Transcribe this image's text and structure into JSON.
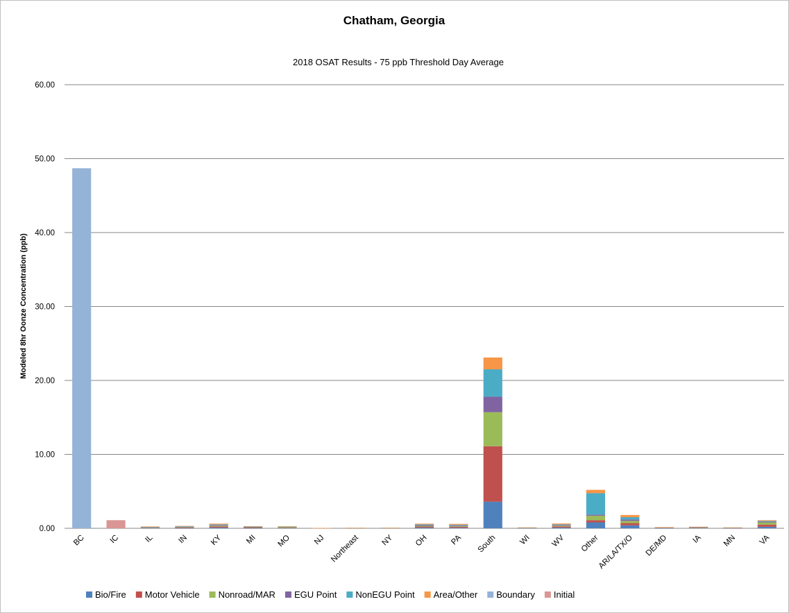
{
  "chart_data": {
    "type": "bar",
    "stacked": true,
    "title": "Chatham, Georgia",
    "subtitle": "2018 OSAT Results - 75 ppb Threshold Day Average",
    "xlabel": "",
    "ylabel": "Modeled 8hr Oonze Concentration (ppb)",
    "ylim": [
      0,
      60
    ],
    "yticks": [
      "0.00",
      "10.00",
      "20.00",
      "30.00",
      "40.00",
      "50.00",
      "60.00"
    ],
    "grid": true,
    "legend_position": "bottom",
    "categories": [
      "BC",
      "IC",
      "IL",
      "IN",
      "KY",
      "MI",
      "MO",
      "NJ",
      "Northeast",
      "NY",
      "OH",
      "PA",
      "South",
      "WI",
      "WV",
      "Other",
      "AR/LA/TX/O",
      "DE/MD",
      "IA",
      "MN",
      "VA"
    ],
    "series": [
      {
        "name": "Bio/Fire",
        "color": "#4f81bd",
        "values": [
          0,
          0,
          0.03,
          0.03,
          0.1,
          0.03,
          0.04,
          0,
          0.01,
          0.01,
          0.1,
          0.08,
          3.6,
          0.01,
          0.1,
          0.8,
          0.4,
          0.02,
          0.03,
          0.01,
          0.2
        ]
      },
      {
        "name": "Motor Vehicle",
        "color": "#c0504d",
        "values": [
          0,
          0,
          0.05,
          0.07,
          0.15,
          0.07,
          0.04,
          0.01,
          0.02,
          0.02,
          0.13,
          0.12,
          7.5,
          0.03,
          0.15,
          0.3,
          0.3,
          0.03,
          0.04,
          0.02,
          0.3
        ]
      },
      {
        "name": "Nonroad/MAR",
        "color": "#9bbb59",
        "values": [
          0,
          0,
          0.04,
          0.05,
          0.1,
          0.05,
          0.1,
          0.01,
          0.01,
          0.01,
          0.1,
          0.1,
          4.6,
          0.02,
          0.1,
          0.6,
          0.3,
          0.04,
          0.05,
          0.03,
          0.3
        ]
      },
      {
        "name": "EGU Point",
        "color": "#8064a2",
        "values": [
          0,
          0,
          0.05,
          0.07,
          0.1,
          0.04,
          0.03,
          0.01,
          0.01,
          0.01,
          0.1,
          0.1,
          2.1,
          0.02,
          0.1,
          0.15,
          0.2,
          0.02,
          0.03,
          0.02,
          0.1
        ]
      },
      {
        "name": "NonEGU Point",
        "color": "#4bacc6",
        "values": [
          0,
          0,
          0.04,
          0.05,
          0.08,
          0.05,
          0.03,
          0,
          0.01,
          0.01,
          0.1,
          0.08,
          3.7,
          0.02,
          0.08,
          2.9,
          0.3,
          0.02,
          0.03,
          0.02,
          0.1
        ]
      },
      {
        "name": "Area/Other",
        "color": "#f79646",
        "values": [
          0,
          0,
          0.04,
          0.05,
          0.1,
          0.04,
          0.03,
          0.01,
          0.01,
          0.02,
          0.1,
          0.12,
          1.6,
          0.02,
          0.12,
          0.45,
          0.3,
          0.02,
          0.03,
          0.02,
          0.1
        ]
      },
      {
        "name": "Boundary",
        "color": "#95b3d7",
        "values": [
          48.7,
          0,
          0,
          0,
          0,
          0,
          0,
          0,
          0,
          0,
          0,
          0,
          0,
          0,
          0,
          0,
          0,
          0,
          0,
          0,
          0
        ]
      },
      {
        "name": "Initial",
        "color": "#d99694",
        "values": [
          0,
          1.1,
          0,
          0,
          0,
          0,
          0,
          0,
          0,
          0,
          0,
          0,
          0,
          0,
          0,
          0,
          0,
          0,
          0,
          0,
          0
        ]
      }
    ]
  }
}
